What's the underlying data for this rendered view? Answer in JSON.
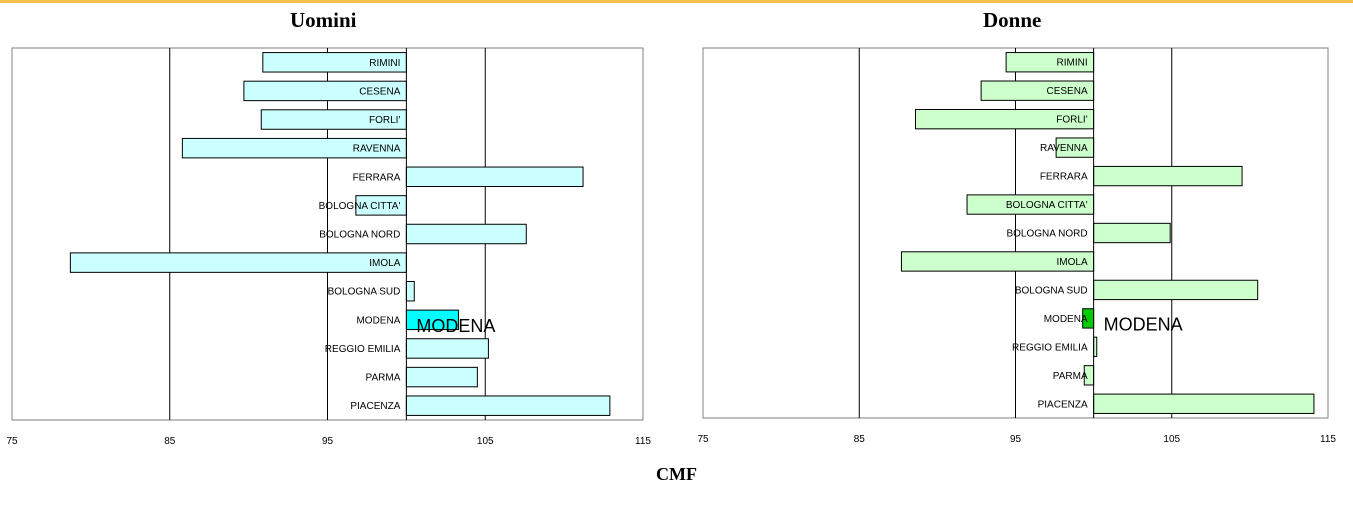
{
  "colors": {
    "accent_line": "#f5c04a",
    "uomini_bar": "#ccffff",
    "uomini_highlight": "#00ffff",
    "donne_bar": "#ccffcc",
    "donne_highlight": "#00cc00",
    "axis": "#000000"
  },
  "footer_label": "CMF",
  "chart_data": [
    {
      "type": "bar",
      "orientation": "horizontal",
      "title": "Uomini",
      "xlim": [
        75,
        115
      ],
      "xticks": [
        75,
        85,
        95,
        105,
        115
      ],
      "xtick_labels": [
        "75",
        "85",
        "95",
        "105",
        "115"
      ],
      "baseline": 100,
      "grid": "vertical at 85, 105",
      "categories": [
        "RIMINI",
        "CESENA",
        "FORLI'",
        "RAVENNA",
        "FERRARA",
        "BOLOGNA CITTA'",
        "BOLOGNA NORD",
        "IMOLA",
        "BOLOGNA SUD",
        "MODENA",
        "REGGIO EMILIA",
        "PARMA",
        "PIACENZA"
      ],
      "values": [
        90.9,
        89.7,
        90.8,
        85.8,
        111.2,
        96.8,
        107.6,
        78.7,
        100.5,
        103.3,
        105.2,
        104.5,
        112.9
      ],
      "highlight": "MODENA",
      "annotation": "MODENA"
    },
    {
      "type": "bar",
      "orientation": "horizontal",
      "title": "Donne",
      "xlim": [
        75,
        115
      ],
      "xticks": [
        75,
        85,
        95,
        105,
        115
      ],
      "xtick_labels": [
        "75",
        "85",
        "95",
        "105",
        "115"
      ],
      "baseline": 100,
      "grid": "vertical at 85, 105",
      "categories": [
        "RIMINI",
        "CESENA",
        "FORLI'",
        "RAVENNA",
        "FERRARA",
        "BOLOGNA CITTA'",
        "BOLOGNA NORD",
        "IMOLA",
        "BOLOGNA SUD",
        "MODENA",
        "REGGIO EMILIA",
        "PARMA",
        "PIACENZA"
      ],
      "values": [
        94.4,
        92.8,
        88.6,
        97.6,
        109.5,
        91.9,
        104.9,
        87.7,
        110.5,
        99.3,
        100.2,
        99.4,
        114.1
      ],
      "highlight": "MODENA",
      "annotation": "MODENA"
    }
  ]
}
